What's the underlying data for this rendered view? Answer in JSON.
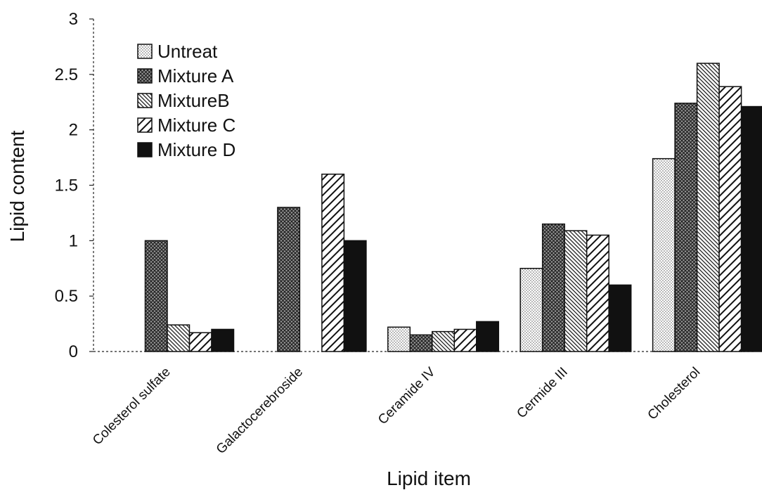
{
  "chart_data": {
    "type": "bar",
    "xlabel": "Lipid item",
    "ylabel": "Lipid content",
    "ylim": [
      0,
      3
    ],
    "yticks": [
      "0",
      "0.5",
      "1",
      "1.5",
      "2",
      "2.5",
      "3"
    ],
    "grid": false,
    "legend_position": "top-left",
    "categories": [
      "Colesterol sulfate",
      "Galactocerebroside",
      "Ceramide IV",
      "Cermide III",
      "Cholesterol"
    ],
    "series": [
      {
        "name": "Untreat",
        "pattern": "dots",
        "values": [
          0,
          0,
          0.22,
          0.75,
          1.74
        ]
      },
      {
        "name": "Mixture A",
        "pattern": "crosshatch",
        "values": [
          1.0,
          1.3,
          0.15,
          1.15,
          2.24
        ]
      },
      {
        "name": "MixtureB",
        "pattern": "diag-fine",
        "values": [
          0.24,
          0,
          0.18,
          1.09,
          2.6
        ]
      },
      {
        "name": "Mixture C",
        "pattern": "diag-wide",
        "values": [
          0.17,
          1.6,
          0.2,
          1.05,
          2.39
        ]
      },
      {
        "name": "Mixture D",
        "pattern": "solid",
        "values": [
          0.2,
          1.0,
          0.27,
          0.6,
          2.21
        ]
      }
    ]
  }
}
